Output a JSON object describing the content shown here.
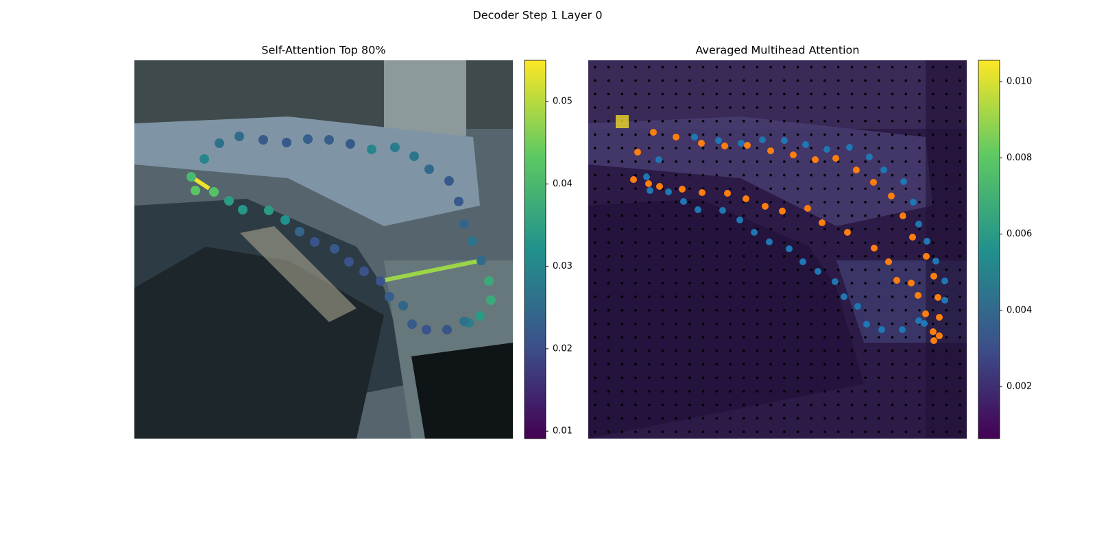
{
  "title": "Decoder Step 1 Layer 0",
  "chart_data": [
    {
      "type": "scatter",
      "title": "Self-Attention Top 80%",
      "colormap": "viridis",
      "xlim": [
        0,
        552
      ],
      "ylim": [
        552,
        0
      ],
      "clim": [
        0.0091,
        0.055
      ],
      "cticks": [
        0.01,
        0.02,
        0.03,
        0.04,
        0.05
      ],
      "series": [
        {
          "x": [
            83,
            89,
            116,
            102,
            124,
            153,
            188,
            222,
            253,
            284,
            315,
            346,
            380,
            408,
            430,
            459,
            473,
            481,
            493,
            506,
            517,
            520,
            504,
            488,
            481,
            456,
            426,
            405,
            392,
            372,
            359,
            335,
            313,
            292,
            263,
            241,
            220,
            196,
            158,
            138
          ],
          "y": [
            170,
            190,
            192,
            144,
            121,
            111,
            116,
            120,
            115,
            116,
            122,
            130,
            127,
            140,
            159,
            176,
            206,
            239,
            264,
            292,
            322,
            350,
            373,
            383,
            381,
            393,
            393,
            385,
            358,
            345,
            322,
            308,
            294,
            275,
            265,
            250,
            233,
            219,
            218,
            205
          ],
          "values": [
            0.04,
            0.043,
            0.042,
            0.03,
            0.026,
            0.025,
            0.022,
            0.022,
            0.023,
            0.023,
            0.022,
            0.03,
            0.028,
            0.027,
            0.025,
            0.022,
            0.022,
            0.024,
            0.027,
            0.025,
            0.037,
            0.037,
            0.034,
            0.029,
            0.026,
            0.021,
            0.021,
            0.022,
            0.024,
            0.023,
            0.021,
            0.021,
            0.021,
            0.022,
            0.021,
            0.024,
            0.032,
            0.034,
            0.033,
            0.034
          ]
        }
      ],
      "lines": [
        {
          "x": [
            83,
            109
          ],
          "y": [
            170,
            187
          ],
          "value": 0.054
        },
        {
          "x": [
            359,
            506
          ],
          "y": [
            322,
            292
          ],
          "value": 0.048
        }
      ]
    },
    {
      "type": "scatter",
      "title": "Averaged Multihead Attention",
      "colormap": "viridis",
      "xlim": [
        0,
        552
      ],
      "ylim": [
        552,
        0
      ],
      "clim": [
        0.000634,
        0.01056
      ],
      "cticks": [
        0.002,
        0.004,
        0.006,
        0.008,
        {
          "value": 0.01,
          "label": "0.010"
        }
      ],
      "cells": [
        {
          "x": [
            40,
            59
          ],
          "y": [
            80,
            99
          ],
          "value": 0.0105
        }
      ],
      "series": [
        {
          "color": "#1f77b4",
          "x": [
            103,
            85,
            90,
            117,
            139,
            160,
            196,
            155,
            190,
            223,
            254,
            286,
            317,
            348,
            381,
            410,
            431,
            460,
            474,
            482,
            494,
            507,
            520,
            520,
            490,
            482,
            458,
            428,
            406,
            393,
            373,
            360,
            335,
            313,
            293,
            264,
            242,
            221
          ],
          "y": [
            145,
            170,
            190,
            192,
            206,
            218,
            219,
            112,
            117,
            121,
            116,
            117,
            123,
            130,
            127,
            141,
            160,
            177,
            207,
            239,
            264,
            293,
            322,
            350,
            384,
            380,
            393,
            393,
            385,
            359,
            345,
            323,
            308,
            294,
            275,
            265,
            251,
            233
          ]
        },
        {
          "color": "#ff7f0e",
          "x": [
            72,
            95,
            128,
            165,
            199,
            232,
            266,
            299,
            331,
            361,
            391,
            416,
            442,
            459,
            473,
            493,
            504,
            510,
            492,
            512,
            503,
            512,
            504,
            481,
            471,
            450,
            438,
            417,
            378,
            341,
            320,
            283,
            258,
            230,
            203,
            166,
            137,
            104,
            88,
            66
          ],
          "y": [
            134,
            105,
            112,
            121,
            125,
            124,
            132,
            138,
            145,
            143,
            160,
            178,
            198,
            227,
            258,
            286,
            315,
            346,
            370,
            375,
            396,
            402,
            409,
            343,
            325,
            321,
            294,
            274,
            251,
            237,
            216,
            220,
            213,
            202,
            194,
            193,
            188,
            184,
            180,
            174
          ]
        }
      ]
    }
  ]
}
